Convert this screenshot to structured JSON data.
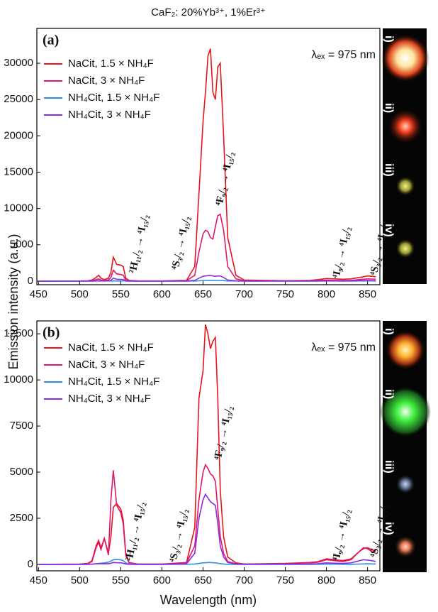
{
  "chart_data": [
    {
      "type": "line",
      "title": "CaF₂: 20%Yb³⁺, 1%Er³⁺",
      "panel_label": "(a)",
      "ylabel": "Emission intensity (a.u.)",
      "annotation": "λₑₓ = 975 nm",
      "transitions": [
        "²H₁₁/₂ → ⁴I₁₅/₂",
        "⁴S₃/₂ → ⁴I₁₅/₂",
        "⁴F₉/₂ → ⁴I₁₅/₂",
        "⁴I₉/₂ → ⁴I₁₅/₂",
        "⁴S₃/₂ → ⁴I₁₃/₂"
      ],
      "photo_labels": [
        "i)",
        "ii)",
        "iii)",
        "iv)"
      ],
      "x": [
        450,
        500,
        510,
        515,
        520,
        523,
        526,
        530,
        535,
        538,
        541,
        545,
        550,
        553,
        556,
        560,
        570,
        600,
        630,
        640,
        645,
        650,
        653,
        656,
        659,
        662,
        665,
        668,
        671,
        675,
        680,
        690,
        700,
        750,
        780,
        790,
        800,
        810,
        820,
        830,
        840,
        845,
        850,
        855,
        860
      ],
      "series": [
        {
          "name": "NaCit, 1.5 × NH₄F",
          "color": "#e8141c",
          "values": [
            0,
            20,
            50,
            150,
            500,
            800,
            400,
            200,
            400,
            1200,
            3300,
            2300,
            2200,
            2000,
            400,
            100,
            30,
            20,
            100,
            2000,
            12000,
            22000,
            26000,
            31000,
            32000,
            26000,
            25000,
            29500,
            30000,
            20000,
            6000,
            800,
            150,
            50,
            100,
            200,
            350,
            300,
            250,
            300,
            500,
            600,
            700,
            650,
            600
          ]
        },
        {
          "name": "NaCit, 3 × NH₄F",
          "color": "#e3146e",
          "values": [
            0,
            10,
            20,
            60,
            200,
            300,
            150,
            80,
            150,
            500,
            1500,
            1000,
            900,
            800,
            150,
            40,
            10,
            10,
            40,
            800,
            4000,
            6500,
            7000,
            6800,
            6000,
            5800,
            7500,
            9000,
            9200,
            7000,
            2000,
            300,
            50,
            20,
            40,
            80,
            120,
            100,
            80,
            100,
            200,
            250,
            300,
            280,
            250
          ]
        },
        {
          "name": "NH₄Cit, 1.5 × NH₄F",
          "color": "#2f8fe0",
          "values": [
            0,
            0,
            0,
            0,
            5,
            10,
            5,
            5,
            5,
            10,
            30,
            20,
            20,
            15,
            5,
            0,
            0,
            0,
            0,
            10,
            40,
            70,
            90,
            100,
            100,
            90,
            80,
            90,
            90,
            60,
            20,
            5,
            0,
            0,
            0,
            0,
            5,
            5,
            0,
            0,
            10,
            10,
            15,
            15,
            10
          ]
        },
        {
          "name": "NH₄Cit, 3 × NH₄F",
          "color": "#8a2be2",
          "values": [
            0,
            0,
            5,
            10,
            30,
            50,
            30,
            20,
            40,
            100,
            400,
            250,
            220,
            200,
            50,
            10,
            0,
            0,
            10,
            100,
            400,
            650,
            700,
            750,
            800,
            700,
            650,
            700,
            700,
            500,
            150,
            30,
            10,
            5,
            10,
            20,
            40,
            30,
            30,
            40,
            60,
            70,
            80,
            70,
            60
          ]
        }
      ],
      "xlim": [
        448,
        865
      ],
      "xticks": [
        450,
        500,
        550,
        600,
        650,
        700,
        750,
        800,
        850
      ],
      "ylim": [
        -500,
        34800
      ],
      "yticks": [
        0,
        5000,
        10000,
        15000,
        20000,
        25000,
        30000
      ]
    },
    {
      "type": "line",
      "panel_label": "(b)",
      "xlabel": "Wavelength (nm)",
      "annotation": "λₑₓ = 975 nm",
      "transitions": [
        "²H₁₁/₂ → ⁴I₁₅/₂",
        "⁴S₃/₂ → ⁴I₁₅/₂",
        "⁴F₉/₂ → ⁴I₁₅/₂",
        "⁴I₉/₂ → ⁴I₁₅/₂",
        "⁴S₃/₂ → ⁴I₁₃/₂"
      ],
      "photo_labels": [
        "i)",
        "ii)",
        "iii)",
        "iv)"
      ],
      "x": [
        450,
        500,
        510,
        515,
        520,
        523,
        526,
        530,
        535,
        538,
        541,
        545,
        550,
        553,
        556,
        560,
        570,
        600,
        630,
        640,
        645,
        650,
        653,
        656,
        659,
        662,
        665,
        668,
        671,
        675,
        680,
        690,
        700,
        750,
        780,
        790,
        800,
        810,
        820,
        830,
        840,
        845,
        850,
        855,
        860
      ],
      "series": [
        {
          "name": "NaCit, 1.5 × NH₄F",
          "color": "#e8141c",
          "values": [
            0,
            10,
            50,
            200,
            1000,
            1300,
            900,
            1400,
            600,
            1500,
            3100,
            3300,
            3000,
            2400,
            600,
            100,
            20,
            10,
            100,
            2000,
            9000,
            10500,
            13000,
            12500,
            11700,
            12100,
            12300,
            9000,
            4000,
            1500,
            400,
            80,
            20,
            50,
            100,
            150,
            300,
            250,
            200,
            300,
            700,
            850,
            900,
            800,
            700
          ]
        },
        {
          "name": "NaCit, 3 × NH₄F",
          "color": "#e3146e",
          "values": [
            0,
            10,
            40,
            150,
            900,
            1200,
            800,
            1400,
            500,
            3500,
            5100,
            3200,
            2800,
            2200,
            500,
            80,
            20,
            10,
            80,
            1000,
            3500,
            5000,
            5400,
            5200,
            4900,
            4800,
            4500,
            3000,
            1500,
            600,
            150,
            30,
            10,
            40,
            80,
            120,
            250,
            200,
            150,
            250,
            700,
            900,
            850,
            700,
            600
          ]
        },
        {
          "name": "NH₄Cit, 1.5 × NH₄F",
          "color": "#2f8fe0",
          "values": [
            0,
            0,
            5,
            10,
            30,
            50,
            60,
            80,
            120,
            180,
            250,
            270,
            250,
            200,
            80,
            20,
            0,
            0,
            5,
            20,
            50,
            80,
            90,
            100,
            100,
            90,
            80,
            60,
            40,
            20,
            5,
            0,
            0,
            0,
            0,
            5,
            10,
            10,
            5,
            5,
            20,
            25,
            30,
            25,
            20
          ]
        },
        {
          "name": "NH₄Cit, 3 × NH₄F",
          "color": "#8a2be2",
          "values": [
            0,
            0,
            5,
            10,
            30,
            40,
            30,
            40,
            30,
            60,
            100,
            90,
            80,
            60,
            20,
            5,
            0,
            0,
            30,
            600,
            2500,
            3500,
            3800,
            3600,
            3400,
            3300,
            3200,
            2200,
            1000,
            400,
            100,
            20,
            5,
            10,
            20,
            40,
            80,
            60,
            50,
            80,
            200,
            250,
            230,
            200,
            150
          ]
        }
      ],
      "xlim": [
        448,
        865
      ],
      "xticks": [
        450,
        500,
        550,
        600,
        650,
        700,
        750,
        800,
        850
      ],
      "ylim": [
        -350,
        13200
      ],
      "yticks": [
        0,
        2500,
        5000,
        7500,
        10000,
        12500
      ]
    }
  ]
}
